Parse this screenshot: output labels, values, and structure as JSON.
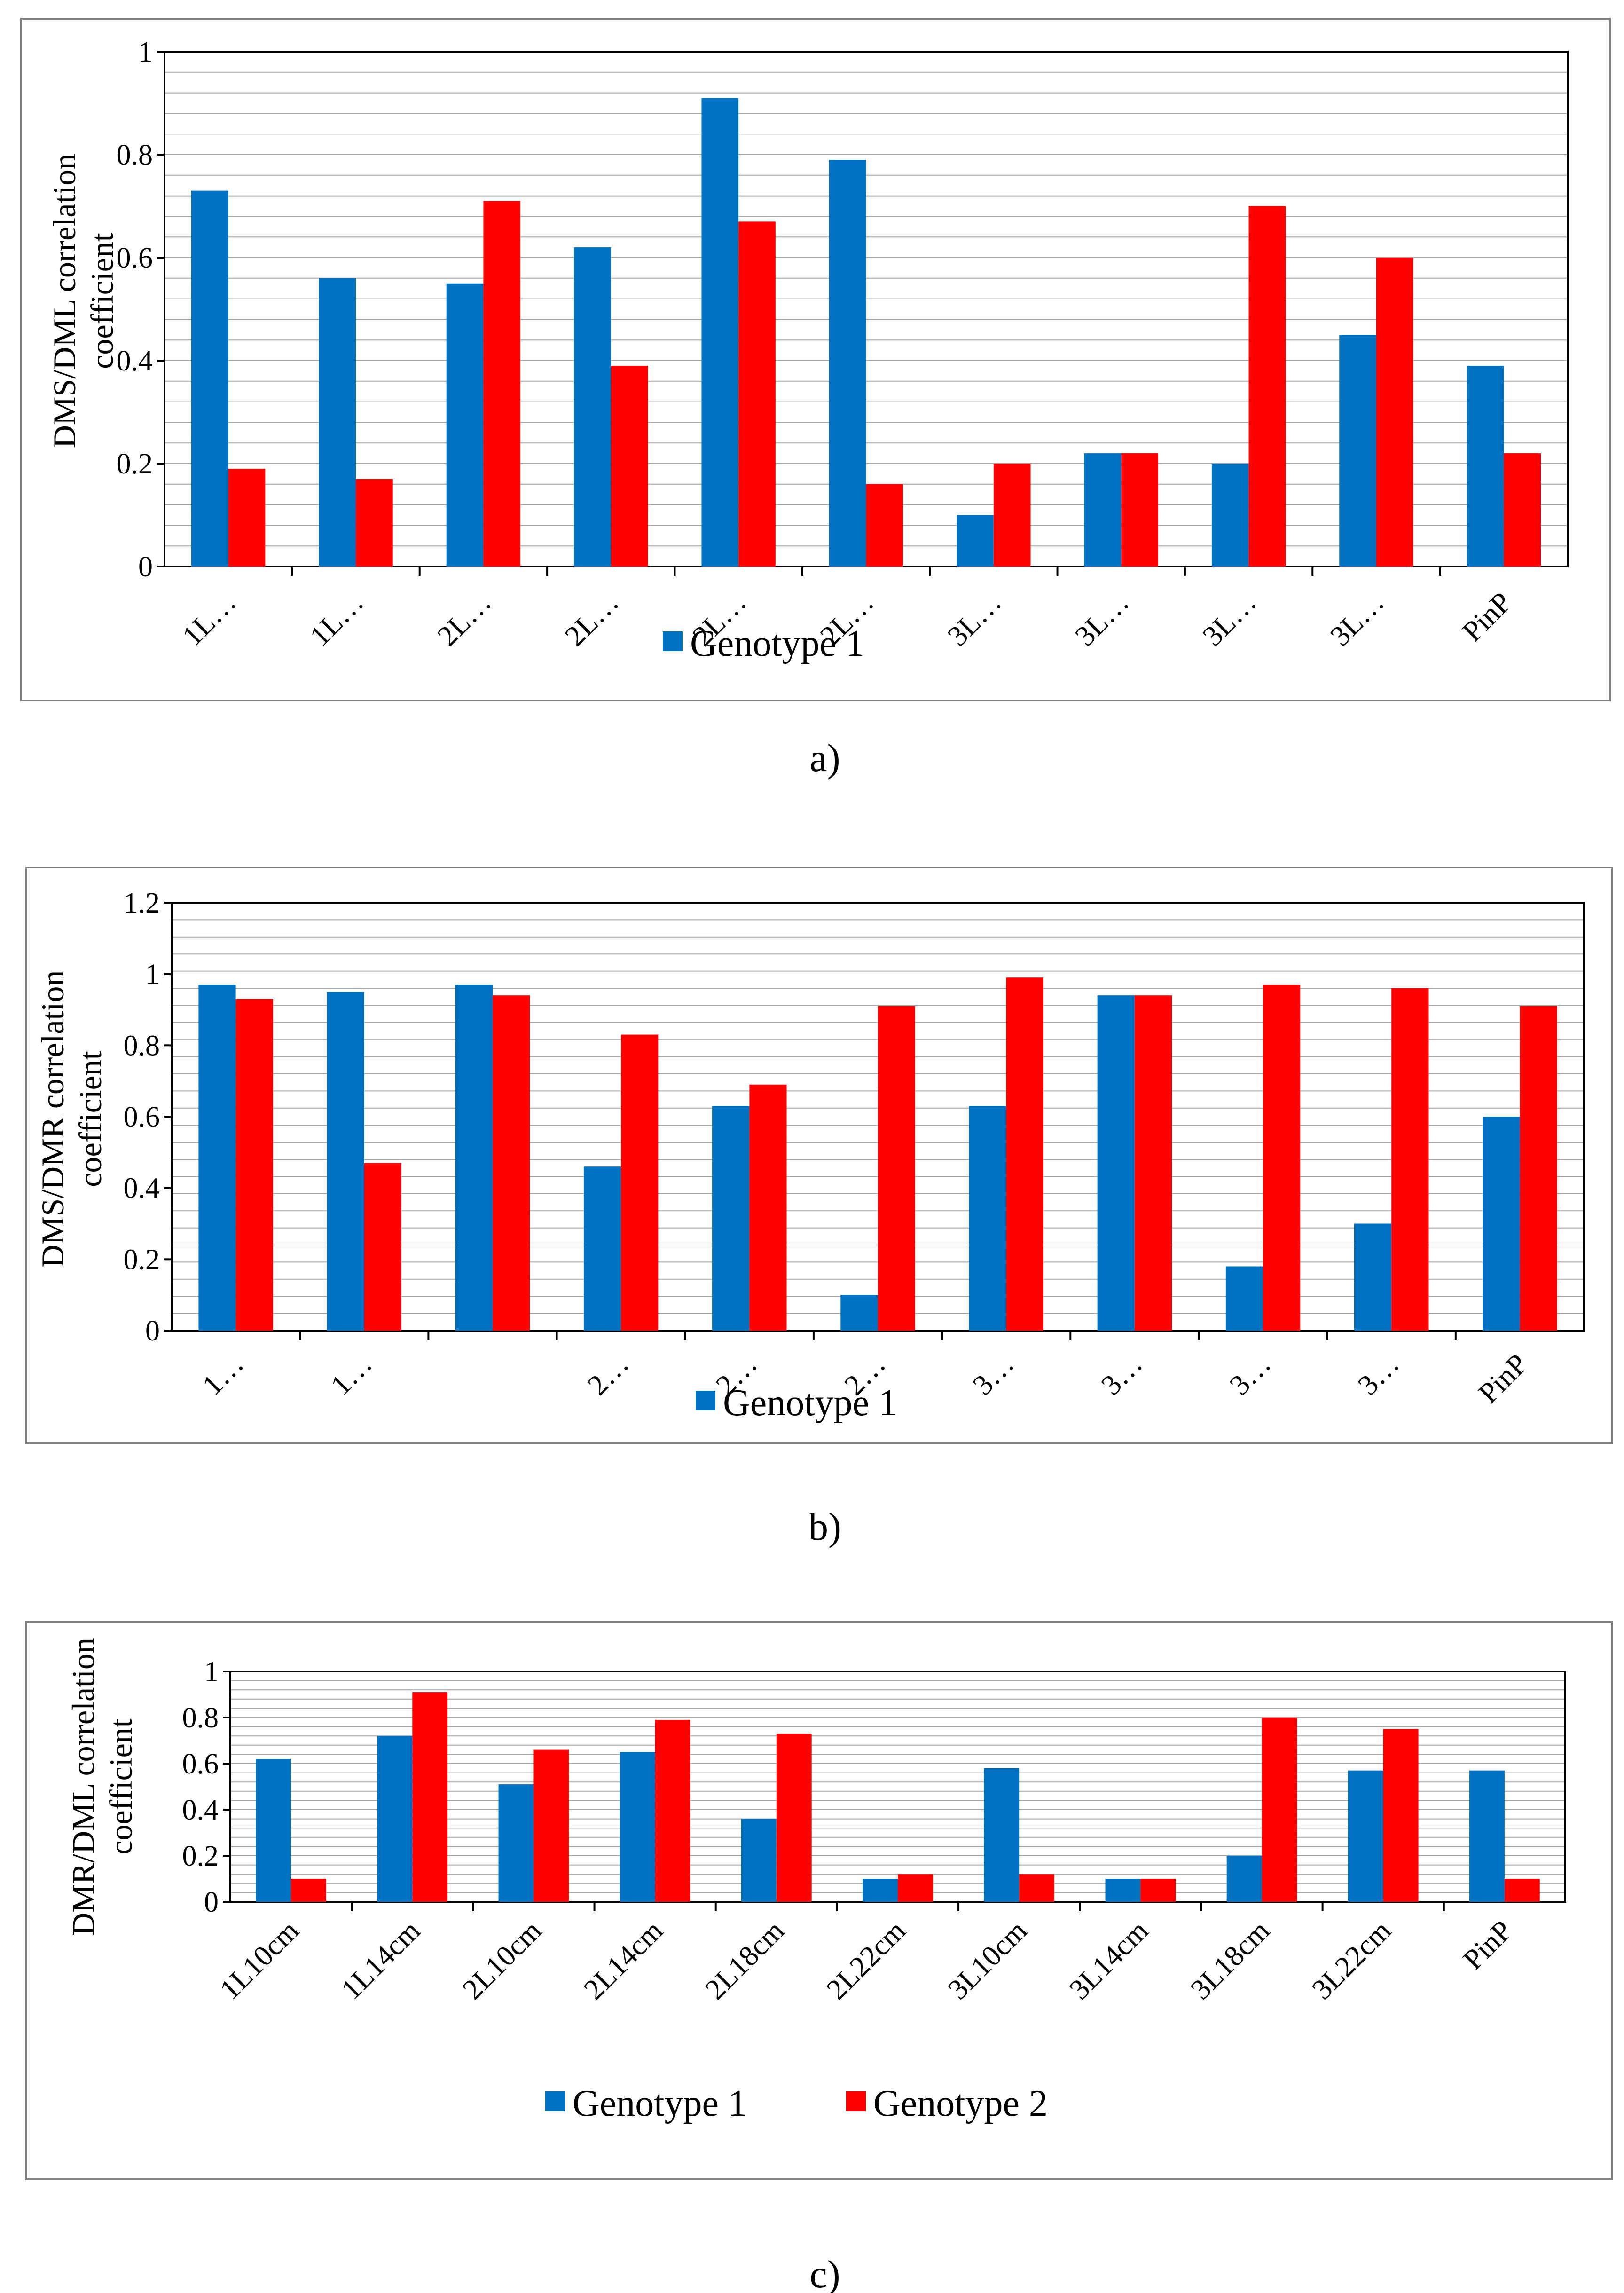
{
  "colors": {
    "series1": "#0070c0",
    "series2": "#ff0000",
    "grid": "#a6a6a6",
    "frame": "#808080"
  },
  "chart_data": [
    {
      "type": "bar",
      "caption": "a)",
      "ylabel": [
        "DMS/DML correlation",
        "coefficient"
      ],
      "categories": [
        "1L…",
        "1L…",
        "2L…",
        "2L…",
        "2L…",
        "2L…",
        "3L…",
        "3L…",
        "3L…",
        "3L…",
        "PinP"
      ],
      "ylim": [
        0,
        1
      ],
      "yticks": [
        "0",
        "0.2",
        "0.4",
        "0.6",
        "0.8",
        "1"
      ],
      "series": [
        {
          "name": "Genotype 1",
          "values": [
            0.73,
            0.56,
            0.55,
            0.62,
            0.91,
            0.79,
            0.1,
            0.22,
            0.2,
            0.45,
            0.39
          ]
        },
        {
          "values": [
            0.19,
            0.17,
            0.71,
            0.39,
            0.67,
            0.16,
            0.2,
            0.22,
            0.7,
            0.6,
            0.22
          ]
        }
      ],
      "legend": [
        "Genotype 1"
      ],
      "legend_position": "bottom",
      "grid": true
    },
    {
      "type": "bar",
      "caption": "b)",
      "ylabel": [
        "DMS/DMR correlation",
        "coefficient"
      ],
      "categories": [
        "1…",
        "1…",
        "",
        "2…",
        "2…",
        "2…",
        "3…",
        "3…",
        "3…",
        "3…",
        "PinP"
      ],
      "ylim": [
        0,
        1.2
      ],
      "yticks": [
        "0",
        "0.2",
        "0.4",
        "0.6",
        "0.8",
        "1",
        "1.2"
      ],
      "series": [
        {
          "name": "Genotype 1",
          "values": [
            0.97,
            0.95,
            0.97,
            0.46,
            0.63,
            0.1,
            0.63,
            0.94,
            0.18,
            0.3,
            0.6
          ]
        },
        {
          "values": [
            0.93,
            0.47,
            0.94,
            0.83,
            0.69,
            0.91,
            0.99,
            0.94,
            0.97,
            0.96,
            0.91
          ]
        }
      ],
      "legend": [
        "Genotype 1"
      ],
      "legend_position": "bottom",
      "grid": true
    },
    {
      "type": "bar",
      "caption": "c)",
      "ylabel": [
        "DMR/DML correlation",
        "coefficient"
      ],
      "categories": [
        "1L10cm",
        "1L14cm",
        "2L10cm",
        "2L14cm",
        "2L18cm",
        "2L22cm",
        "3L10cm",
        "3L14cm",
        "3L18cm",
        "3L22cm",
        "PinP"
      ],
      "ylim": [
        0,
        1
      ],
      "yticks": [
        "0",
        "0.2",
        "0.4",
        "0.6",
        "0.8",
        "1"
      ],
      "series": [
        {
          "name": "Genotype 1",
          "values": [
            0.62,
            0.72,
            0.51,
            0.65,
            0.36,
            0.1,
            0.58,
            0.1,
            0.2,
            0.57,
            0.57
          ]
        },
        {
          "name": "Genotype 2",
          "values": [
            0.1,
            0.91,
            0.66,
            0.79,
            0.73,
            0.12,
            0.12,
            0.1,
            0.8,
            0.75,
            0.1
          ]
        }
      ],
      "legend": [
        "Genotype 1",
        "Genotype 2"
      ],
      "legend_position": "bottom",
      "grid": true
    }
  ]
}
